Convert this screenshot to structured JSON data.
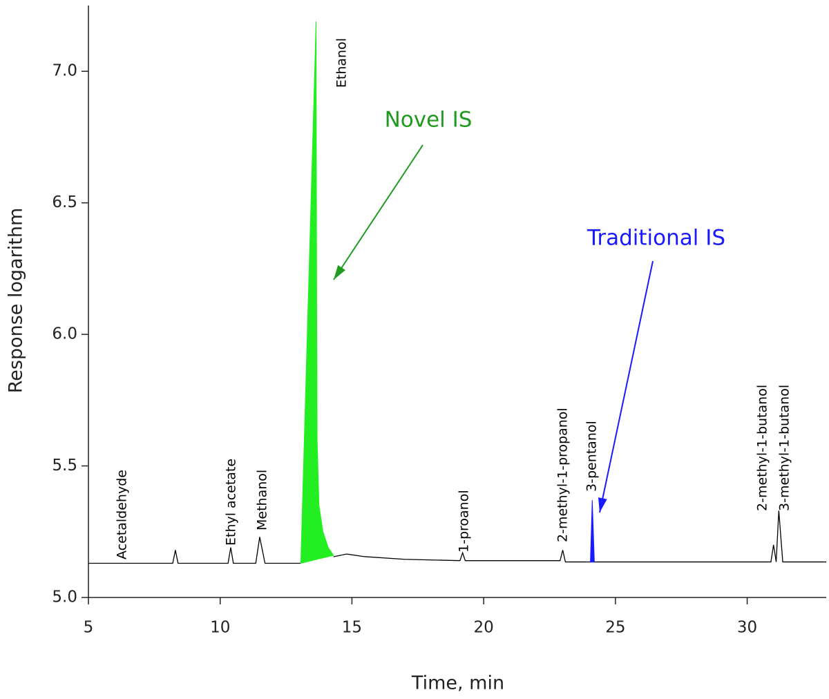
{
  "chart_data": {
    "type": "line",
    "xlabel": "Time, min",
    "ylabel": "Response logarithm",
    "xlim": [
      5,
      33
    ],
    "ylim": [
      5,
      7.25
    ],
    "xticks": [
      5,
      10,
      15,
      20,
      25,
      30
    ],
    "yticks": [
      {
        "value": 5,
        "label": "5.0"
      },
      5.5,
      {
        "value": 6,
        "label": "6.0"
      },
      6.5,
      {
        "value": 7,
        "label": "7.0"
      }
    ],
    "series": [
      {
        "color": "#000000",
        "fill": false,
        "x": [
          5,
          8.2,
          8.3,
          8.4,
          10.3,
          10.4,
          10.5,
          11.35,
          11.5,
          11.7,
          13.06,
          13.5,
          14.3,
          14.8,
          15.5,
          17,
          19.1,
          19.2,
          19.3,
          22.9,
          23.0,
          23.1,
          24.0,
          24.3,
          30.9,
          31.0,
          31.1,
          31.2,
          31.35,
          33
        ],
        "values": [
          5.13,
          5.13,
          5.18,
          5.13,
          5.13,
          5.19,
          5.13,
          5.13,
          5.23,
          5.13,
          5.13,
          null,
          5.155,
          5.165,
          5.155,
          5.145,
          5.14,
          5.17,
          5.14,
          5.14,
          5.18,
          5.135,
          5.135,
          5.135,
          5.135,
          5.2,
          5.135,
          5.33,
          5.135,
          5.135
        ]
      },
      {
        "color": "#22ee22",
        "fill": true,
        "x": [
          13.06,
          13.64,
          13.66,
          13.68,
          13.75,
          13.9,
          14.1,
          14.3
        ],
        "values": [
          5.13,
          7.19,
          6.2,
          5.6,
          5.35,
          5.25,
          5.19,
          5.16
        ]
      },
      {
        "color": "#1a1aff",
        "fill": true,
        "x": [
          24.05,
          24.12,
          24.2
        ],
        "values": [
          5.135,
          5.37,
          5.135
        ]
      }
    ],
    "annotations": [
      {
        "text": "Acetaldehyde",
        "color": "#000000"
      },
      {
        "text": "Ethyl acetate",
        "color": "#000000"
      },
      {
        "text": "Methanol",
        "color": "#000000"
      },
      {
        "text": "Ethanol",
        "color": "#000000"
      },
      {
        "text": "1-proanol",
        "color": "#000000"
      },
      {
        "text": "2-methyl-1-propanol",
        "color": "#000000"
      },
      {
        "text": "3-pentanol",
        "color": "#000000"
      },
      {
        "text": "2-methyl-1-butanol",
        "color": "#000000"
      },
      {
        "text": "3-methyl-1-butanol",
        "color": "#000000"
      },
      {
        "text": "Novel IS",
        "color": "#1f9a1f"
      },
      {
        "text": "Traditional IS",
        "color": "#1a1aff"
      }
    ]
  }
}
